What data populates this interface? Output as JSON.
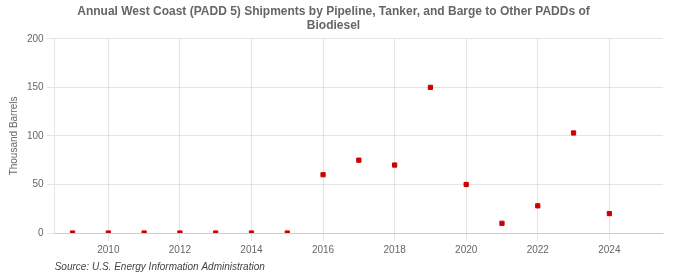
{
  "chart_data": {
    "type": "scatter",
    "title": "Annual West Coast (PADD 5) Shipments by Pipeline, Tanker, and Barge to Other PADDs of\nBiodiesel",
    "ylabel": "Thousand Barrels",
    "source": "Source: U.S. Energy Information Administration",
    "x": [
      2009,
      2010,
      2011,
      2012,
      2013,
      2014,
      2015,
      2016,
      2017,
      2018,
      2019,
      2020,
      2021,
      2022,
      2023,
      2024
    ],
    "values": [
      0,
      0,
      0,
      0,
      0,
      0,
      0,
      60,
      75,
      70,
      150,
      50,
      10,
      28,
      103,
      20
    ],
    "color": "#cc0000",
    "marker": "square",
    "xlim": [
      2008.5,
      2025.5
    ],
    "xticks": [
      2010,
      2012,
      2014,
      2016,
      2018,
      2020,
      2022,
      2024
    ],
    "ylim": [
      0,
      200
    ],
    "yticks": [
      0,
      50,
      100,
      150,
      200
    ],
    "grid": true
  }
}
